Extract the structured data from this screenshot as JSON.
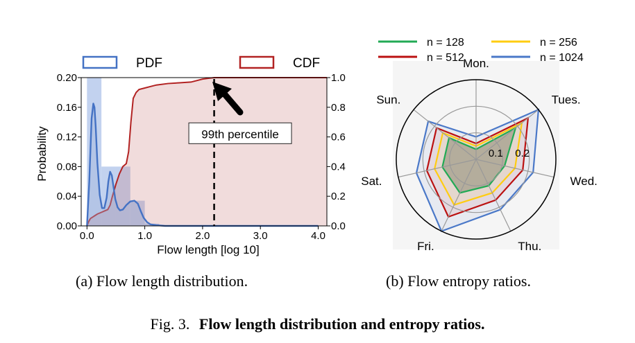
{
  "figure_caption": {
    "prefix": "Fig. 3.",
    "title": "Flow length distribution and entropy ratios."
  },
  "subcaptions": {
    "a": "(a)  Flow length distribution.",
    "b": "(b)  Flow entropy ratios."
  },
  "chart_data": [
    {
      "type": "line",
      "panel": "a",
      "xlabel": "Flow length [log 10]",
      "ylabel": "Probability",
      "xlim": [
        -0.1,
        4.15
      ],
      "ylim": [
        0,
        0.2
      ],
      "y2lim": [
        0,
        1.0
      ],
      "xticks": [
        0.0,
        1.0,
        2.0,
        3.0,
        4.0
      ],
      "xtick_labels": [
        "0.0",
        "1.0",
        "2.0",
        "3.0",
        "4.0"
      ],
      "yticks": [
        0.0,
        0.04,
        0.08,
        0.12,
        0.16,
        0.2
      ],
      "ytick_labels": [
        "0.00",
        "0.04",
        "0.08",
        "0.12",
        "0.16",
        "0.20"
      ],
      "y2ticks": [
        0.0,
        0.2,
        0.4,
        0.6,
        0.8,
        1.0
      ],
      "y2tick_labels": [
        "0.0",
        "0.2",
        "0.4",
        "0.6",
        "0.8",
        "1.0"
      ],
      "legend": [
        {
          "label": "PDF",
          "color": "#4472c4"
        },
        {
          "label": "CDF",
          "color": "#b22222"
        }
      ],
      "histogram": {
        "color": "#aec3ea",
        "bins": [
          {
            "x0": 0.0,
            "x1": 0.25,
            "value": 0.2
          },
          {
            "x0": 0.25,
            "x1": 0.5,
            "value": 0.08
          },
          {
            "x0": 0.5,
            "x1": 0.75,
            "value": 0.08
          },
          {
            "x0": 0.75,
            "x1": 1.0,
            "value": 0.034
          },
          {
            "x0": 1.0,
            "x1": 1.25,
            "value": 0.003
          }
        ]
      },
      "series": [
        {
          "name": "PDF",
          "axis": "left",
          "color": "#4472c4",
          "x": [
            0.0,
            0.04,
            0.08,
            0.11,
            0.13,
            0.15,
            0.18,
            0.22,
            0.26,
            0.3,
            0.34,
            0.37,
            0.4,
            0.43,
            0.46,
            0.49,
            0.53,
            0.57,
            0.62,
            0.68,
            0.75,
            0.82,
            0.88,
            0.93,
            0.98,
            1.04,
            1.1,
            1.2,
            1.35,
            1.6,
            2.0,
            4.0
          ],
          "values": [
            0.0,
            0.06,
            0.145,
            0.165,
            0.16,
            0.135,
            0.085,
            0.042,
            0.024,
            0.024,
            0.038,
            0.06,
            0.073,
            0.068,
            0.052,
            0.036,
            0.025,
            0.021,
            0.022,
            0.028,
            0.033,
            0.034,
            0.03,
            0.02,
            0.011,
            0.005,
            0.002,
            0.001,
            0.0,
            0.0,
            0.0,
            0.0
          ]
        },
        {
          "name": "CDF",
          "axis": "right",
          "color": "#b22222",
          "x": [
            0.0,
            0.03,
            0.06,
            0.1,
            0.14,
            0.18,
            0.24,
            0.3,
            0.36,
            0.4,
            0.44,
            0.5,
            0.56,
            0.62,
            0.68,
            0.72,
            0.76,
            0.8,
            0.85,
            0.9,
            1.0,
            1.1,
            1.2,
            1.4,
            1.6,
            1.8,
            2.0,
            2.1,
            2.2,
            2.5,
            3.0,
            4.0,
            4.15
          ],
          "values": [
            0.0,
            0.03,
            0.05,
            0.06,
            0.07,
            0.08,
            0.09,
            0.1,
            0.11,
            0.14,
            0.2,
            0.28,
            0.35,
            0.4,
            0.42,
            0.5,
            0.7,
            0.86,
            0.9,
            0.92,
            0.93,
            0.94,
            0.95,
            0.96,
            0.965,
            0.97,
            0.99,
            0.995,
            1.0,
            1.0,
            1.0,
            1.0,
            1.0
          ]
        }
      ],
      "reference_line": {
        "x": 2.2,
        "style": "dashed"
      },
      "annotation": {
        "text": "99th percentile",
        "x": 2.65,
        "y": 0.124
      }
    },
    {
      "type": "radar",
      "panel": "b",
      "axes": [
        "Mon.",
        "Tues.",
        "Wed.",
        "Thu.",
        "Fri.",
        "Sat.",
        "Sun."
      ],
      "rticks": [
        0.1,
        0.2
      ],
      "rtick_labels": [
        "0.1",
        "0.2"
      ],
      "rmax": 0.3,
      "legend": [
        {
          "label": "n = 128",
          "color": "#22aa55"
        },
        {
          "label": "n = 256",
          "color": "#ffcc11"
        },
        {
          "label": "n = 512",
          "color": "#bb1111"
        },
        {
          "label": "n = 1024",
          "color": "#4a78c8"
        }
      ],
      "series": [
        {
          "name": "n = 1024",
          "color": "#4a78c8",
          "values": [
            0.085,
            0.3,
            0.22,
            0.21,
            0.3,
            0.23,
            0.23
          ]
        },
        {
          "name": "n = 512",
          "color": "#bb1111",
          "values": [
            0.06,
            0.25,
            0.18,
            0.17,
            0.24,
            0.19,
            0.19
          ]
        },
        {
          "name": "n = 256",
          "color": "#ffcc11",
          "values": [
            0.05,
            0.22,
            0.15,
            0.14,
            0.19,
            0.16,
            0.16
          ]
        },
        {
          "name": "n = 128",
          "color": "#22aa55",
          "values": [
            0.038,
            0.19,
            0.11,
            0.11,
            0.14,
            0.13,
            0.13
          ]
        }
      ]
    }
  ]
}
